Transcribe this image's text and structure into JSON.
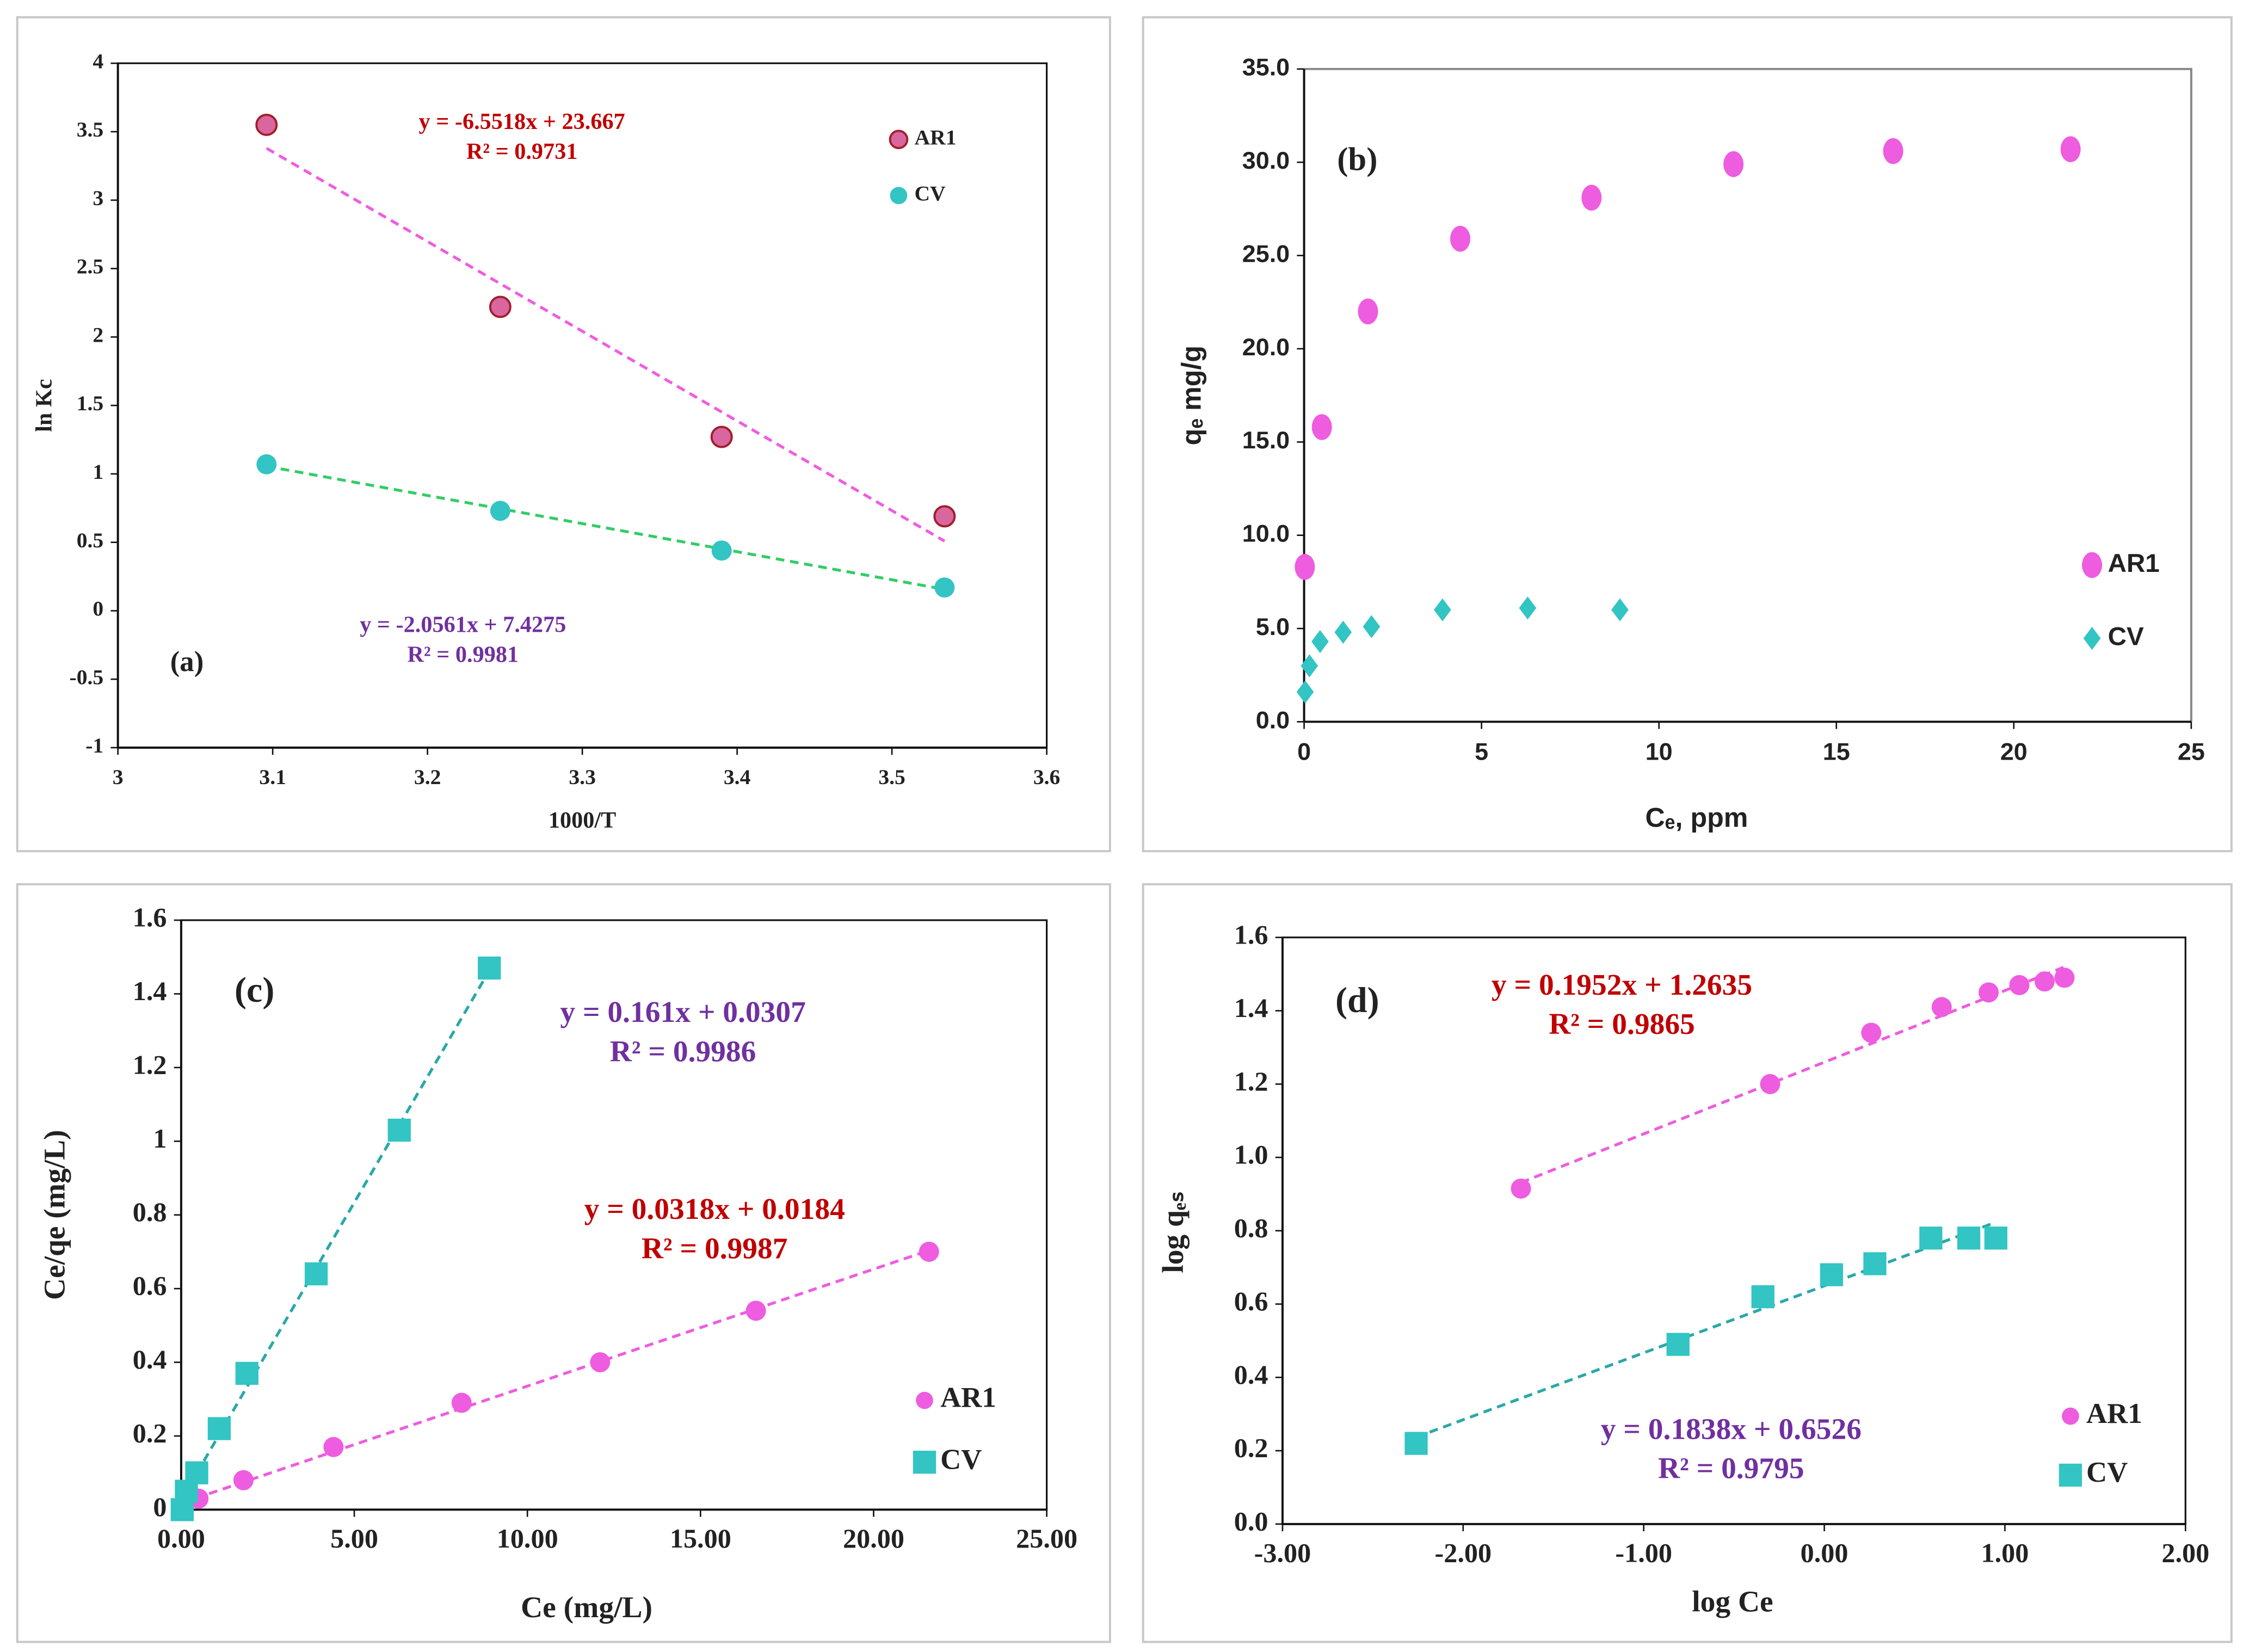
{
  "chart_data": [
    {
      "type": "scatter",
      "panel": "(a)",
      "xlabel": "1000/T",
      "ylabel": "ln Kc",
      "xlim": [
        3,
        3.6
      ],
      "xticks": [
        3,
        3.1,
        3.2,
        3.3,
        3.4,
        3.5,
        3.6
      ],
      "ylim": [
        -1,
        4
      ],
      "yticks": [
        -1,
        -0.5,
        0,
        0.5,
        1,
        1.5,
        2,
        2.5,
        3,
        3.5,
        4
      ],
      "series": [
        {
          "name": "AR1",
          "color": "#d9669e",
          "edgecolor": "#a0202a",
          "marker": "circle",
          "x": [
            3.096,
            3.247,
            3.39,
            3.534
          ],
          "values": [
            3.55,
            2.22,
            1.27,
            0.69
          ],
          "trendline": {
            "color": "#f05ce0",
            "text_color": "#c00000",
            "equation": "y = -6.5518x + 23.667",
            "r_squared": "R² = 0.9731"
          }
        },
        {
          "name": "CV",
          "color": "#33c4c4",
          "marker": "circle",
          "x": [
            3.096,
            3.247,
            3.39,
            3.534
          ],
          "values": [
            1.07,
            0.73,
            0.44,
            0.17
          ],
          "trendline": {
            "color": "#33cc66",
            "text_color": "#7030a0",
            "equation": "y = -2.0561x + 7.4275",
            "r_squared": "R² = 0.9981"
          }
        }
      ]
    },
    {
      "type": "scatter",
      "panel": "(b)",
      "xlabel": "Cₑ, ppm",
      "ylabel": "qₑ mg/g",
      "xlim": [
        0,
        25
      ],
      "xticks": [
        0,
        5,
        10,
        15,
        20,
        25
      ],
      "ylim": [
        0,
        35
      ],
      "yticks": [
        {
          "value": 0,
          "label": "0.0"
        },
        {
          "value": 5,
          "label": "5.0"
        },
        {
          "value": 10,
          "label": "10.0"
        },
        {
          "value": 15,
          "label": "15.0"
        },
        {
          "value": 20,
          "label": "20.0"
        },
        {
          "value": 25,
          "label": "25.0"
        },
        {
          "value": 30,
          "label": "30.0"
        },
        {
          "value": 35,
          "label": "35.0"
        }
      ],
      "series": [
        {
          "name": "AR1",
          "color": "#ee5ce0",
          "marker": "ellipse",
          "x": [
            0.02,
            0.5,
            1.8,
            4.4,
            8.1,
            12.1,
            16.6,
            21.6
          ],
          "values": [
            8.3,
            15.8,
            22.0,
            25.9,
            28.1,
            29.9,
            30.6,
            30.7
          ]
        },
        {
          "name": "CV",
          "color": "#33c4c4",
          "marker": "diamond",
          "x": [
            0.03,
            0.15,
            0.45,
            1.1,
            1.9,
            3.9,
            6.3,
            8.9
          ],
          "values": [
            1.6,
            3.0,
            4.3,
            4.8,
            5.1,
            6.0,
            6.1,
            6.0
          ]
        }
      ]
    },
    {
      "type": "scatter",
      "panel": "(c)",
      "xlabel": "Ce (mg/L)",
      "ylabel": "Ce/qe (mg/L)",
      "xlim": [
        0,
        25
      ],
      "xticks": [
        {
          "value": 0,
          "label": "0.00"
        },
        {
          "value": 5,
          "label": "5.00"
        },
        {
          "value": 10,
          "label": "10.00"
        },
        {
          "value": 15,
          "label": "15.00"
        },
        {
          "value": 20,
          "label": "20.00"
        },
        {
          "value": 25,
          "label": "25.00"
        }
      ],
      "ylim": [
        0,
        1.6
      ],
      "yticks": [
        0,
        0.2,
        0.4,
        0.6,
        0.8,
        1,
        1.2,
        1.4,
        1.6
      ],
      "series": [
        {
          "name": "AR1",
          "color": "#ee5ce0",
          "marker": "circle",
          "x": [
            0.02,
            0.5,
            1.8,
            4.4,
            8.1,
            12.1,
            16.6,
            21.6
          ],
          "values": [
            0.0,
            0.03,
            0.08,
            0.17,
            0.29,
            0.4,
            0.54,
            0.7
          ],
          "trendline": {
            "color": "#ee5ce0",
            "text_color": "#c00000",
            "equation": "y = 0.0318x + 0.0184",
            "r_squared": "R² = 0.9987"
          }
        },
        {
          "name": "CV",
          "color": "#33c4c4",
          "marker": "square",
          "x": [
            0.03,
            0.15,
            0.45,
            1.1,
            1.9,
            3.9,
            6.3,
            8.9
          ],
          "values": [
            0.0,
            0.05,
            0.1,
            0.22,
            0.37,
            0.64,
            1.03,
            1.47
          ],
          "trendline": {
            "color": "#2aa8a8",
            "text_color": "#7030a0",
            "equation": "y = 0.161x + 0.0307",
            "r_squared": "R² = 0.9986"
          }
        }
      ]
    },
    {
      "type": "scatter",
      "panel": "(d)",
      "xlabel": "log Ce",
      "ylabel": "log qₑₛ",
      "xlim": [
        -3,
        2
      ],
      "xticks": [
        {
          "value": -3,
          "label": "-3.00"
        },
        {
          "value": -2,
          "label": "-2.00"
        },
        {
          "value": -1,
          "label": "-1.00"
        },
        {
          "value": 0,
          "label": "0.00"
        },
        {
          "value": 1,
          "label": "1.00"
        },
        {
          "value": 2,
          "label": "2.00"
        }
      ],
      "ylim": [
        0,
        1.6
      ],
      "yticks": [
        {
          "value": 0,
          "label": "0.0"
        },
        0.2,
        0.4,
        0.6,
        0.8,
        {
          "value": 1,
          "label": "1.0"
        },
        1.2,
        1.4,
        1.6
      ],
      "series": [
        {
          "name": "AR1",
          "color": "#ee5ce0",
          "marker": "circle",
          "x": [
            -1.68,
            -0.3,
            0.26,
            0.65,
            0.91,
            1.08,
            1.22,
            1.33
          ],
          "values": [
            0.915,
            1.2,
            1.34,
            1.41,
            1.45,
            1.47,
            1.48,
            1.49
          ],
          "trendline": {
            "color": "#ee5ce0",
            "text_color": "#c00000",
            "equation": "y = 0.1952x + 1.2635",
            "r_squared": "R² = 0.9865"
          }
        },
        {
          "name": "CV",
          "color": "#33c4c4",
          "marker": "square",
          "x": [
            -2.26,
            -0.81,
            -0.34,
            0.04,
            0.28,
            0.59,
            0.8,
            0.95
          ],
          "values": [
            0.22,
            0.49,
            0.62,
            0.68,
            0.71,
            0.78,
            0.78,
            0.78
          ],
          "trendline": {
            "color": "#2aa8a8",
            "text_color": "#7030a0",
            "equation": "y = 0.1838x + 0.6526",
            "r_squared": "R² = 0.9795"
          }
        }
      ]
    }
  ]
}
